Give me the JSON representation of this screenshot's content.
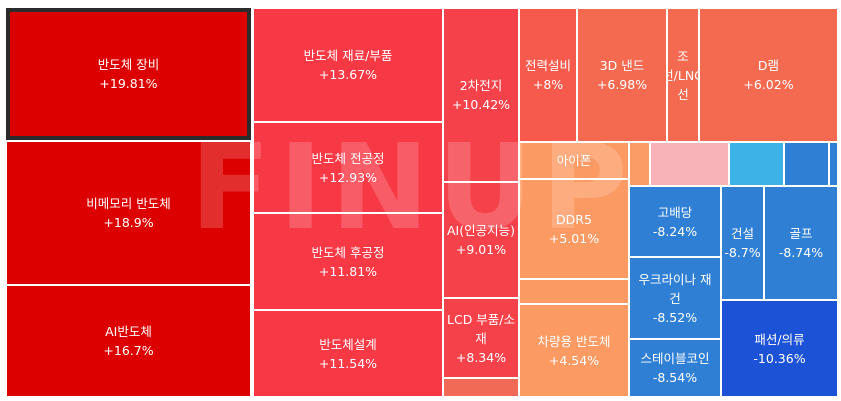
{
  "watermark": "FINUP",
  "tiles": [
    {
      "name": "반도체 장비",
      "change": "+19.81%",
      "color": "#dd0000",
      "selected": true
    },
    {
      "name": "비메모리 반도체",
      "change": "+18.9%",
      "color": "#dd0000"
    },
    {
      "name": "AI반도체",
      "change": "+16.7%",
      "color": "#dd0000"
    },
    {
      "name": "반도체 재료/부품",
      "change": "+13.67%",
      "color": "#f73845"
    },
    {
      "name": "반도체 전공정",
      "change": "+12.93%",
      "color": "#f73845"
    },
    {
      "name": "반도체 후공정",
      "change": "+11.81%",
      "color": "#f73845"
    },
    {
      "name": "반도체설계",
      "change": "+11.54%",
      "color": "#f73845"
    },
    {
      "name": "2차전지",
      "change": "+10.42%",
      "color": "#f5414a"
    },
    {
      "name": "AI(인공지능)",
      "change": "+9.01%",
      "color": "#f5414a"
    },
    {
      "name": "LCD 부품/소재",
      "change": "+8.34%",
      "color": "#f5414a"
    },
    {
      "name": "전력설비",
      "change": "+8%",
      "color": "#f55a4c"
    },
    {
      "name": "3D 낸드",
      "change": "+6.98%",
      "color": "#f36a51"
    },
    {
      "name": "조선/LNG선",
      "change": "",
      "color": "#f36a51"
    },
    {
      "name": "D램",
      "change": "+6.02%",
      "color": "#f36a51"
    },
    {
      "name": "아이폰",
      "change": "",
      "color": "#fc9a63"
    },
    {
      "name": "DDR5",
      "change": "+5.01%",
      "color": "#fc9a63"
    },
    {
      "name": "차량용 반도체",
      "change": "+4.54%",
      "color": "#fc9a63"
    },
    {
      "name": "고배당",
      "change": "-8.24%",
      "color": "#2f7fd4"
    },
    {
      "name": "건설",
      "change": "-8.7%",
      "color": "#2f7fd4"
    },
    {
      "name": "골프",
      "change": "-8.74%",
      "color": "#2f7fd4"
    },
    {
      "name": "우크라이나 재건",
      "change": "-8.52%",
      "color": "#2f7fd4"
    },
    {
      "name": "스테이블코인",
      "change": "-8.54%",
      "color": "#2f7fd4"
    },
    {
      "name": "패션/의류",
      "change": "-10.36%",
      "color": "#1b52d6"
    }
  ],
  "small_tiles": [
    {
      "color": "#f06a55"
    },
    {
      "color": "#fb9c66"
    },
    {
      "color": "#f7b3b8"
    },
    {
      "color": "#3db2e6"
    },
    {
      "color": "#2f7fd4"
    },
    {
      "color": "#2f7fd4"
    }
  ]
}
